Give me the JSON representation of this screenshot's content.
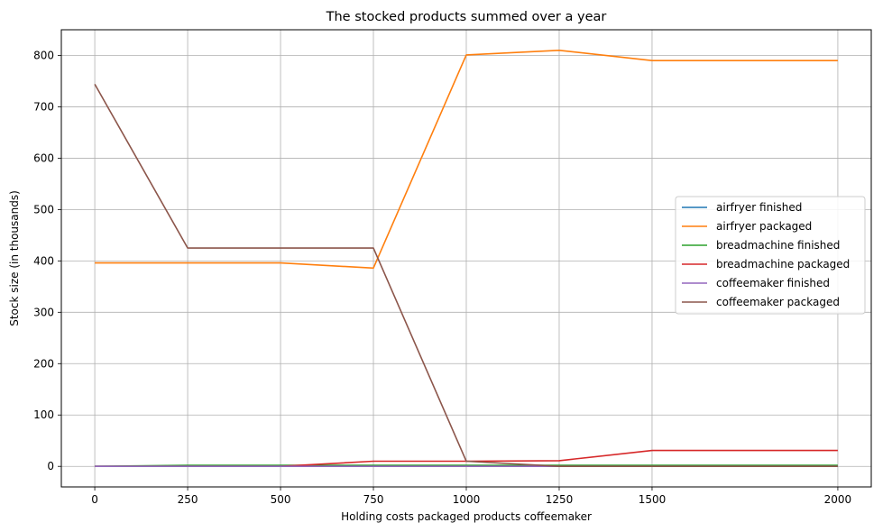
{
  "chart_data": {
    "type": "line",
    "title": "The stocked products summed over a year",
    "xlabel": "Holding costs packaged products coffeemaker",
    "ylabel": "Stock size (in thousands)",
    "x": [
      0,
      250,
      500,
      750,
      1000,
      1250,
      1500,
      2000
    ],
    "xticks": [
      0,
      250,
      500,
      750,
      1000,
      1250,
      1500,
      2000
    ],
    "yticks": [
      0,
      100,
      200,
      300,
      400,
      500,
      600,
      700,
      800
    ],
    "xlim": [
      -90,
      2090
    ],
    "ylim": [
      -40,
      850
    ],
    "grid": true,
    "legend_position": "center-right",
    "series": [
      {
        "name": "airfryer finished",
        "color": "#1f77b4",
        "values": [
          0,
          0,
          0,
          0,
          0,
          0,
          0,
          0
        ]
      },
      {
        "name": "airfryer packaged",
        "color": "#ff7f0e",
        "values": [
          396,
          396,
          396,
          386,
          801,
          810,
          790,
          790
        ]
      },
      {
        "name": "breadmachine finished",
        "color": "#2ca02c",
        "values": [
          0,
          2,
          2,
          2,
          2,
          2,
          2,
          2
        ]
      },
      {
        "name": "breadmachine packaged",
        "color": "#d62728",
        "values": [
          0,
          0,
          0,
          10,
          10,
          11,
          31,
          31
        ]
      },
      {
        "name": "coffeemaker finished",
        "color": "#9467bd",
        "values": [
          0,
          0,
          0,
          0,
          0,
          0,
          0,
          0
        ]
      },
      {
        "name": "coffeemaker packaged",
        "color": "#8c564b",
        "values": [
          744,
          425,
          425,
          425,
          10,
          0,
          0,
          0
        ]
      }
    ]
  }
}
